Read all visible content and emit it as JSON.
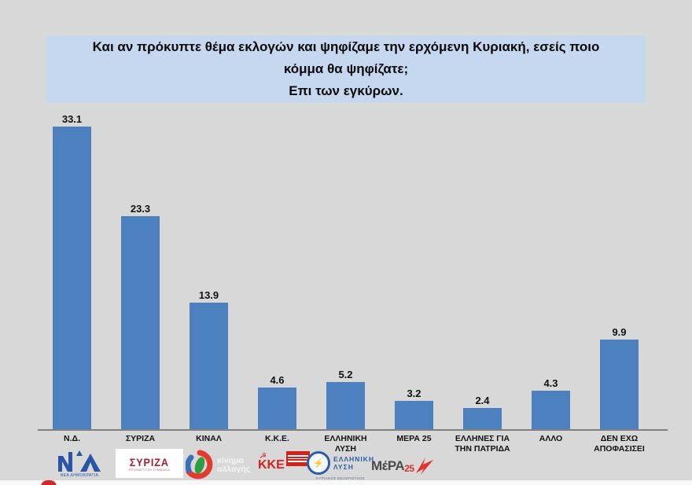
{
  "title": {
    "lines": [
      "Και αν πρόκυπτε θέμα εκλογών και ψηφίζαμε την ερχόμενη Κυριακή, εσείς ποιο",
      "κόμμα θα ψηφίζατε;",
      "Επι των εγκύρων."
    ],
    "background": "#c6d7f0"
  },
  "chart_data": {
    "type": "bar",
    "categories": [
      "Ν.Δ.",
      "ΣΥΡΙΖΑ",
      "ΚΙΝΑΛ",
      "Κ.Κ.Ε.",
      "ΕΛΛΗΝΙΚΗ ΛΥΣΗ",
      "ΜΕΡΑ 25",
      "ΕΛΛΗΝΕΣ ΓΙΑ ΤΗΝ ΠΑΤΡΙΔΑ",
      "ΑΛΛΟ",
      "ΔΕΝ ΕΧΩ ΑΠΟΦΑΣΙΣΕΙ"
    ],
    "values": [
      33.1,
      23.3,
      13.9,
      4.6,
      5.2,
      3.2,
      2.4,
      4.3,
      9.9
    ],
    "value_labels_shown": true,
    "bar_color": "#4d80bf",
    "axis_color": "#7f7f7f",
    "background_color": "#d8d8d8",
    "ylim": [
      0,
      35
    ],
    "grid": false,
    "legend": false,
    "xlabel": "",
    "ylabel": ""
  },
  "logos": {
    "nd": {
      "caption": "ΝΕΑ ΔΗΜΟΚΡΑΤΙΑ",
      "color": "#2a54a5"
    },
    "syriza": {
      "text": "ΣΥΡΙΖΑ",
      "caption": "ΠΡΟΟΔΕΥΤΙΚΗ ΣΥΜΜΑΧΙΑ",
      "color": "#9c2033"
    },
    "kinal": {
      "text": [
        "κίνημα",
        "αλλαγής"
      ],
      "color": "#e23b2e"
    },
    "kke": {
      "text": "ΚΚΕ",
      "glyph": "☭",
      "color": "#d3231c"
    },
    "elliniki_lysi": {
      "text": [
        "ΕΛΛΗΝΙΚΗ",
        "ΛΥΣΗ"
      ],
      "glyph": "⚡",
      "caption": "ΚΥΡΙΑΚΟΣ ΒΕΛΟΠΟΥΛΟΣ",
      "color": "#2b5ea7"
    },
    "mera25": {
      "text": "ΜέΡΑ",
      "suffix": "25",
      "color": "#e0332c"
    }
  }
}
